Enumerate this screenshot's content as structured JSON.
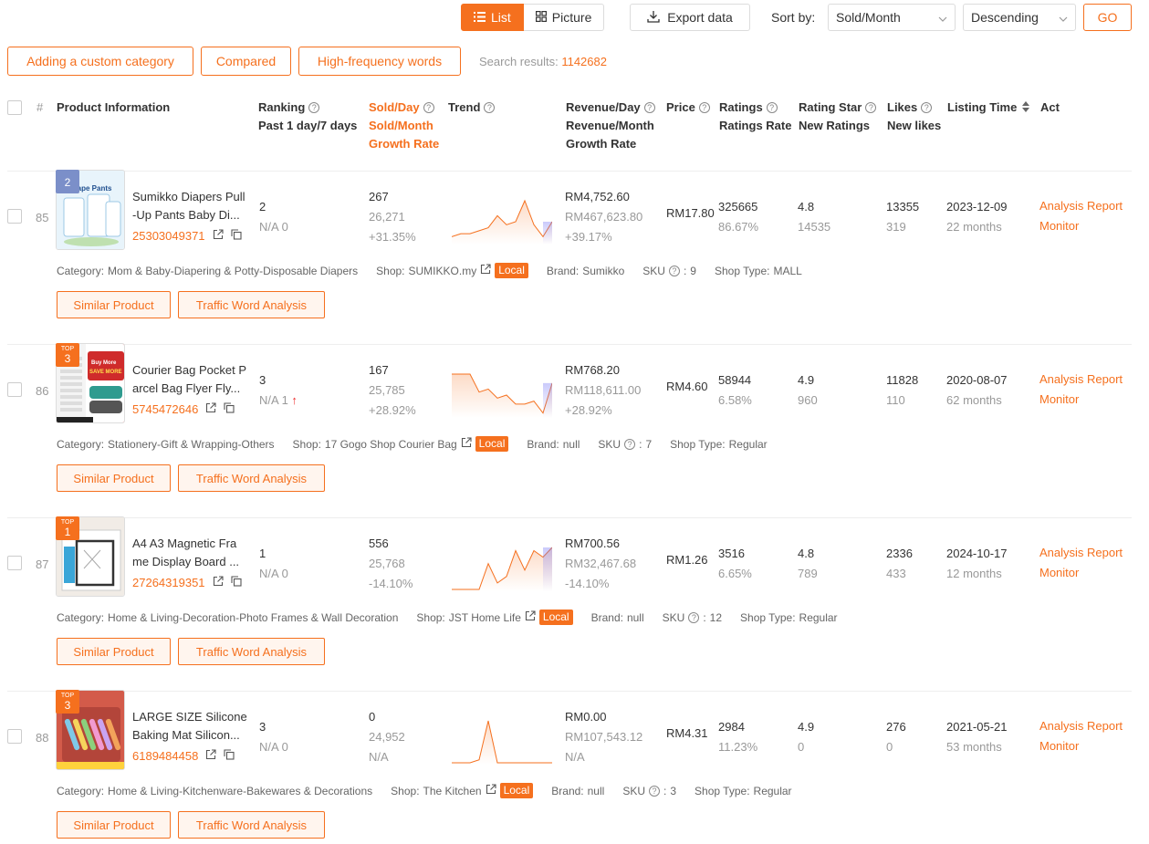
{
  "toolbar": {
    "list_label": "List",
    "picture_label": "Picture",
    "export_label": "Export data",
    "sort_by_label": "Sort by:",
    "sort_field": "Sold/Month",
    "sort_order": "Descending",
    "go_label": "GO"
  },
  "filters": {
    "custom_category": "Adding a custom category",
    "compared": "Compared",
    "high_freq": "High-frequency words",
    "search_results_label": "Search results:",
    "search_results_count": "1142682"
  },
  "header": {
    "index": "#",
    "product_info": "Product Information",
    "ranking": "Ranking",
    "ranking_sub": "Past 1 day/7 days",
    "sold_day": "Sold/Day",
    "sold_month": "Sold/Month",
    "growth_rate": "Growth Rate",
    "trend": "Trend",
    "revenue_day": "Revenue/Day",
    "revenue_month": "Revenue/Month",
    "revenue_growth": "Growth Rate",
    "price": "Price",
    "ratings": "Ratings",
    "ratings_rate": "Ratings Rate",
    "rating_star": "Rating Star",
    "new_ratings": "New Ratings",
    "likes": "Likes",
    "new_likes": "New likes",
    "listing_time": "Listing Time",
    "act": "Act"
  },
  "labels": {
    "category": "Category:",
    "shop": "Shop:",
    "local": "Local",
    "brand": "Brand:",
    "sku": "SKU",
    "shop_type": "Shop Type:",
    "similar_product": "Similar Product",
    "traffic_word": "Traffic Word Analysis",
    "analysis_report": "Analysis Report",
    "monitor": "Monitor"
  },
  "products": [
    {
      "index": "85",
      "badge_top": "",
      "badge_num": "2",
      "name_l1": "Sumikko Diapers Pull",
      "name_l2": "-Up Pants Baby Di...",
      "thumb_text": "Q Shape Pants",
      "id": "25303049371",
      "rank": "2",
      "rank_sub": "N/A 0",
      "sold_day": "267",
      "sold_month": "26,271",
      "growth": "+31.35%",
      "rev_day": "RM4,752.60",
      "rev_month": "RM467,623.80",
      "rev_growth": "+39.17%",
      "price": "RM17.80",
      "ratings": "325665",
      "ratings_rate": "86.67%",
      "rating_star": "4.8",
      "new_ratings": "14535",
      "likes": "13355",
      "new_likes": "319",
      "listing_date": "2023-12-09",
      "listing_age": "22 months",
      "category": "Mom & Baby-Diapering & Potty-Disposable Diapers",
      "shop": "SUMIKKO.my",
      "brand": "Sumikko",
      "sku": "9",
      "shop_type": "MALL",
      "trend": [
        2,
        3,
        3,
        4,
        5,
        9,
        6,
        7,
        14,
        6,
        2,
        7
      ]
    },
    {
      "index": "86",
      "badge_top": "TOP",
      "badge_num": "3",
      "name_l1": "Courier Bag Pocket P",
      "name_l2": "arcel Bag Flyer Fly...",
      "thumb_text": "Buy More SAVE MORE",
      "id": "5745472646",
      "rank": "3",
      "rank_sub": "N/A 1",
      "sold_day": "167",
      "sold_month": "25,785",
      "growth": "+28.92%",
      "rev_day": "RM768.20",
      "rev_month": "RM118,611.00",
      "rev_growth": "+28.92%",
      "price": "RM4.60",
      "ratings": "58944",
      "ratings_rate": "6.58%",
      "rating_star": "4.9",
      "new_ratings": "960",
      "likes": "11828",
      "new_likes": "110",
      "listing_date": "2020-08-07",
      "listing_age": "62 months",
      "category": "Stationery-Gift & Wrapping-Others",
      "shop": "17 Gogo Shop Courier Bag",
      "brand": "null",
      "sku": "7",
      "shop_type": "Regular",
      "trend": [
        14,
        14,
        14,
        8,
        9,
        6,
        7,
        4,
        4,
        5,
        1,
        11
      ]
    },
    {
      "index": "87",
      "badge_top": "TOP",
      "badge_num": "1",
      "name_l1": "A4 A3 Magnetic Fra",
      "name_l2": "me Display Board ...",
      "thumb_text": "",
      "id": "27264319351",
      "rank": "1",
      "rank_sub": "N/A 0",
      "sold_day": "556",
      "sold_month": "25,768",
      "growth": "-14.10%",
      "rev_day": "RM700.56",
      "rev_month": "RM32,467.68",
      "rev_growth": "-14.10%",
      "price": "RM1.26",
      "ratings": "3516",
      "ratings_rate": "6.65%",
      "rating_star": "4.8",
      "new_ratings": "789",
      "likes": "2336",
      "new_likes": "433",
      "listing_date": "2024-10-17",
      "listing_age": "12 months",
      "category": "Home & Living-Decoration-Photo Frames & Wall Decoration",
      "shop": "JST Home Life",
      "brand": "null",
      "sku": "12",
      "shop_type": "Regular",
      "trend": [
        0,
        0,
        0,
        0,
        8,
        2,
        4,
        12,
        6,
        12,
        10,
        13
      ]
    },
    {
      "index": "88",
      "badge_top": "TOP",
      "badge_num": "3",
      "name_l1": "LARGE SIZE Silicone",
      "name_l2": "Baking Mat Silicon...",
      "thumb_text": "",
      "id": "6189484458",
      "rank": "3",
      "rank_sub": "N/A 0",
      "sold_day": "0",
      "sold_month": "24,952",
      "growth": "N/A",
      "rev_day": "RM0.00",
      "rev_month": "RM107,543.12",
      "rev_growth": "N/A",
      "price": "RM4.31",
      "ratings": "2984",
      "ratings_rate": "11.23%",
      "rating_star": "4.9",
      "new_ratings": "0",
      "likes": "276",
      "new_likes": "0",
      "listing_date": "2021-05-21",
      "listing_age": "53 months",
      "category": "Home & Living-Kitchenware-Bakewares & Decorations",
      "shop": "The Kitchen",
      "brand": "null",
      "sku": "3",
      "shop_type": "Regular",
      "trend": [
        0,
        0,
        0,
        1,
        14,
        0,
        0,
        0,
        0,
        0,
        0,
        0
      ]
    }
  ],
  "colors": {
    "accent": "#f5701e"
  }
}
